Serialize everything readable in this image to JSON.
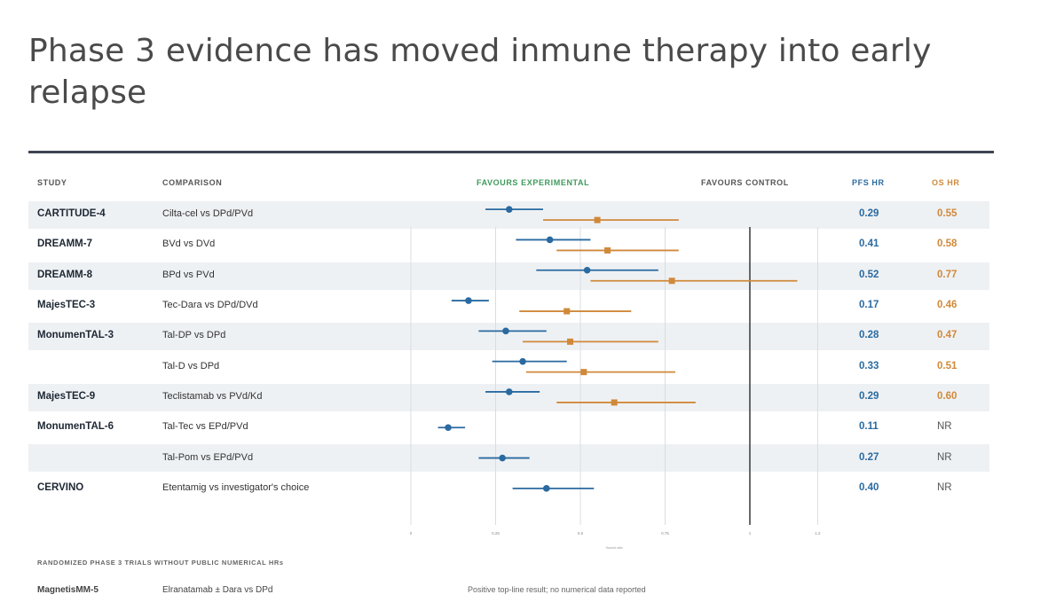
{
  "title": "Phase 3 evidence has moved inmune therapy into early relapse",
  "headers": {
    "study": "STUDY",
    "comparison": "COMPARISON",
    "favours_experimental": "FAVOURS EXPERIMENTAL",
    "favours_control": "FAVOURS CONTROL",
    "pfs_hr": "PFS HR",
    "os_hr": "OS HR"
  },
  "colors": {
    "pfs": "#2a6aa0",
    "os": "#d0893a",
    "favours_experimental": "#3f9a5c",
    "band": "#eef1f4",
    "title_rule": "#3d4553"
  },
  "chart_data": {
    "type": "forest",
    "x_axis_ticks": [
      "0",
      "0.25",
      "0.5",
      "0.75",
      "1",
      "1.2"
    ],
    "x_axis_label": "Hazard ratio",
    "reference_line": 1,
    "series": [
      {
        "name": "PFS HR"
      },
      {
        "name": "OS HR"
      }
    ],
    "rows": [
      {
        "study": "CARTITUDE-4",
        "comparison": "Cilta-cel vs DPd/PVd",
        "pfs_hr_label": "0.29",
        "os_hr_label": "0.55",
        "shaded": true,
        "pfs": {
          "hr": 0.29,
          "low": 0.22,
          "high": 0.39
        },
        "os": {
          "hr": 0.55,
          "low": 0.39,
          "high": 0.79
        }
      },
      {
        "study": "DREAMM-7",
        "comparison": "BVd vs DVd",
        "pfs_hr_label": "0.41",
        "os_hr_label": "0.58",
        "shaded": false,
        "pfs": {
          "hr": 0.41,
          "low": 0.31,
          "high": 0.53
        },
        "os": {
          "hr": 0.58,
          "low": 0.43,
          "high": 0.79
        }
      },
      {
        "study": "DREAMM-8",
        "comparison": "BPd vs PVd",
        "pfs_hr_label": "0.52",
        "os_hr_label": "0.77",
        "shaded": true,
        "pfs": {
          "hr": 0.52,
          "low": 0.37,
          "high": 0.73
        },
        "os": {
          "hr": 0.77,
          "low": 0.53,
          "high": 1.14
        }
      },
      {
        "study": "MajesTEC-3",
        "comparison": "Tec-Dara vs DPd/DVd",
        "pfs_hr_label": "0.17",
        "os_hr_label": "0.46",
        "shaded": false,
        "pfs": {
          "hr": 0.17,
          "low": 0.12,
          "high": 0.23
        },
        "os": {
          "hr": 0.46,
          "low": 0.32,
          "high": 0.65
        }
      },
      {
        "study": "MonumenTAL-3",
        "comparison": "Tal-DP vs DPd",
        "pfs_hr_label": "0.28",
        "os_hr_label": "0.47",
        "shaded": true,
        "pfs": {
          "hr": 0.28,
          "low": 0.2,
          "high": 0.4
        },
        "os": {
          "hr": 0.47,
          "low": 0.33,
          "high": 0.73
        }
      },
      {
        "study": "",
        "comparison": "Tal-D vs DPd",
        "pfs_hr_label": "0.33",
        "os_hr_label": "0.51",
        "shaded": false,
        "pfs": {
          "hr": 0.33,
          "low": 0.24,
          "high": 0.46
        },
        "os": {
          "hr": 0.51,
          "low": 0.34,
          "high": 0.78
        }
      },
      {
        "study": "MajesTEC-9",
        "comparison": "Teclistamab vs PVd/Kd",
        "pfs_hr_label": "0.29",
        "os_hr_label": "0.60",
        "shaded": true,
        "pfs": {
          "hr": 0.29,
          "low": 0.22,
          "high": 0.38
        },
        "os": {
          "hr": 0.6,
          "low": 0.43,
          "high": 0.84
        }
      },
      {
        "study": "MonumenTAL-6",
        "comparison": "Tal-Tec vs EPd/PVd",
        "pfs_hr_label": "0.11",
        "os_hr_label": "NR",
        "shaded": false,
        "pfs": {
          "hr": 0.11,
          "low": 0.08,
          "high": 0.16
        },
        "os": null
      },
      {
        "study": "",
        "comparison": "Tal-Pom vs EPd/PVd",
        "pfs_hr_label": "0.27",
        "os_hr_label": "NR",
        "shaded": true,
        "pfs": {
          "hr": 0.27,
          "low": 0.2,
          "high": 0.35
        },
        "os": null
      },
      {
        "study": "CERVINO",
        "comparison": "Etentamig vs investigator's choice",
        "pfs_hr_label": "0.40",
        "os_hr_label": "NR",
        "shaded": false,
        "pfs": {
          "hr": 0.4,
          "low": 0.3,
          "high": 0.54
        },
        "os": null
      }
    ]
  },
  "footer": {
    "heading": "RANDOMIZED PHASE 3 TRIALS WITHOUT PUBLIC NUMERICAL HRs",
    "study": "MagnetisMM-5",
    "comparison": "Elranatamab ± Dara vs DPd",
    "note": "Positive top-line result; no numerical data reported"
  }
}
